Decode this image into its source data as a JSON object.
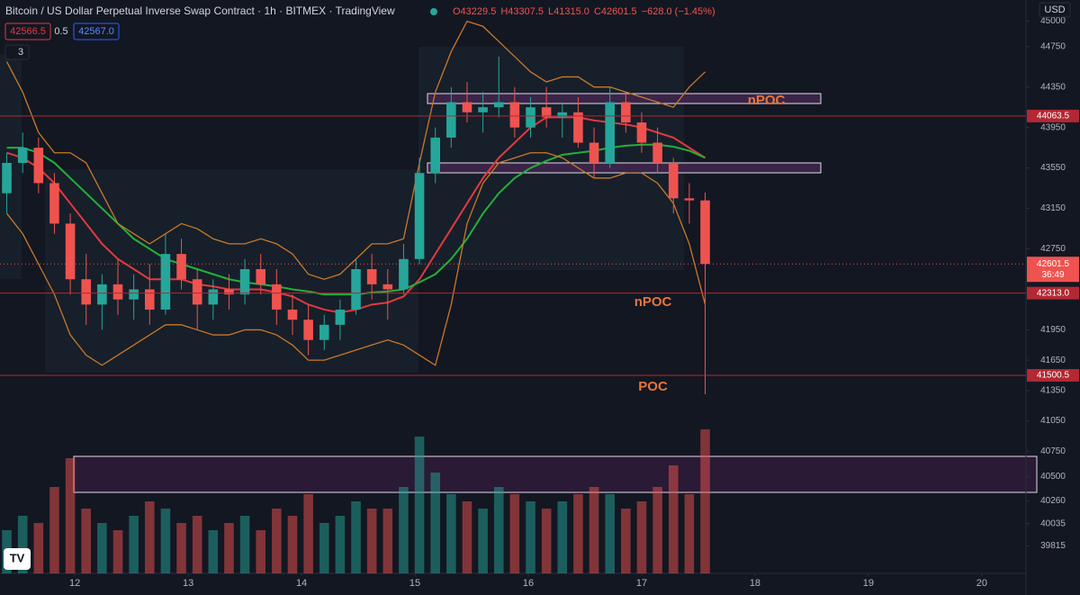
{
  "chart_data": {
    "type": "candlestick",
    "title": "Bitcoin / US Dollar Perpetual Inverse Swap Contract · 1h · BITMEX · TradingView",
    "legend": [
      "O43229.5",
      "H43307.5",
      "L41315.0",
      "C42601.5",
      "−628.0 (−1.45%)"
    ],
    "indicator_values": [
      "42566.5",
      "0.5",
      "42567.0"
    ],
    "collapse_count": "3",
    "currency": "USD",
    "up_color": "#26a69a",
    "down_color": "#ef5350",
    "xlim": [
      11.34,
      20.39
    ],
    "xticks": [
      12,
      13,
      14,
      15,
      16,
      17,
      18,
      19,
      20
    ],
    "ylim": [
      39543,
      45210
    ],
    "yticks": [
      45000,
      44750,
      44350,
      43950,
      43550,
      43150,
      42750,
      41950,
      41650,
      41350,
      41050,
      40750,
      40500,
      40260,
      40035,
      39815
    ],
    "x": [
      11.4,
      11.54,
      11.68,
      11.82,
      11.96,
      12.1,
      12.24,
      12.38,
      12.52,
      12.66,
      12.8,
      12.94,
      13.08,
      13.22,
      13.36,
      13.5,
      13.64,
      13.78,
      13.92,
      14.06,
      14.2,
      14.34,
      14.48,
      14.62,
      14.76,
      14.9,
      15.04,
      15.18,
      15.32,
      15.46,
      15.6,
      15.74,
      15.88,
      16.02,
      16.16,
      16.3,
      16.44,
      16.58,
      16.72,
      16.86,
      17.0,
      17.14,
      17.28,
      17.42,
      17.56
    ],
    "open": [
      43300,
      43600,
      43750,
      43400,
      43000,
      42450,
      42200,
      42400,
      42250,
      42350,
      42150,
      42700,
      42450,
      42200,
      42350,
      42300,
      42550,
      42400,
      42150,
      42050,
      41850,
      42000,
      42150,
      42550,
      42400,
      42350,
      42650,
      43500,
      43850,
      44200,
      44100,
      44150,
      44200,
      43950,
      44150,
      44050,
      44100,
      43800,
      43600,
      44200,
      44000,
      43800,
      43600,
      43250,
      43229.5
    ],
    "high": [
      43700,
      43900,
      43850,
      43500,
      43100,
      42700,
      42500,
      42650,
      42500,
      42600,
      42900,
      42850,
      42550,
      42450,
      42500,
      42650,
      42700,
      42550,
      42300,
      42200,
      42100,
      42250,
      42650,
      42700,
      42550,
      42800,
      43650,
      43950,
      44350,
      44400,
      44300,
      44650,
      44350,
      44250,
      44350,
      44200,
      44250,
      43950,
      44350,
      44300,
      44100,
      43950,
      43650,
      43400,
      43307.5
    ],
    "low": [
      43100,
      43500,
      43300,
      42900,
      42300,
      42000,
      41950,
      42100,
      42050,
      42000,
      42100,
      42350,
      41950,
      42050,
      42150,
      42200,
      42300,
      42000,
      41900,
      41700,
      41750,
      41850,
      42100,
      42250,
      42050,
      42300,
      42600,
      43400,
      43750,
      44000,
      43900,
      44050,
      43850,
      43850,
      43950,
      43850,
      43750,
      43450,
      43550,
      43900,
      43700,
      43500,
      43100,
      43000,
      41315
    ],
    "close": [
      43600,
      43750,
      43400,
      43000,
      42450,
      42200,
      42400,
      42250,
      42350,
      42150,
      42700,
      42450,
      42200,
      42350,
      42300,
      42550,
      42400,
      42150,
      42050,
      41850,
      42000,
      42150,
      42550,
      42400,
      42350,
      42650,
      43500,
      43850,
      44200,
      44100,
      44150,
      44200,
      43950,
      44150,
      44050,
      44100,
      43800,
      43600,
      44200,
      44000,
      43800,
      43600,
      43250,
      43229.5,
      42601.5
    ],
    "volume": [
      30,
      40,
      35,
      60,
      80,
      45,
      35,
      30,
      40,
      50,
      45,
      35,
      40,
      30,
      35,
      40,
      30,
      45,
      40,
      55,
      35,
      40,
      50,
      45,
      45,
      60,
      95,
      70,
      55,
      50,
      45,
      60,
      55,
      50,
      45,
      50,
      55,
      60,
      55,
      45,
      50,
      60,
      75,
      55,
      100
    ],
    "lines": [
      {
        "name": "MA fast",
        "color": "#e03a3e",
        "values": [
          43700,
          43650,
          43550,
          43400,
          43200,
          43000,
          42800,
          42650,
          42550,
          42450,
          42450,
          42450,
          42400,
          42380,
          42350,
          42350,
          42350,
          42320,
          42280,
          42200,
          42150,
          42120,
          42150,
          42200,
          42220,
          42280,
          42450,
          42700,
          42950,
          43200,
          43450,
          43650,
          43800,
          43950,
          44050,
          44050,
          44050,
          44020,
          44000,
          43980,
          43950,
          43900,
          43850,
          43750,
          43650
        ]
      },
      {
        "name": "MA slow",
        "color": "#22b03a",
        "values": [
          43750,
          43750,
          43700,
          43600,
          43450,
          43300,
          43150,
          43000,
          42850,
          42750,
          42650,
          42600,
          42550,
          42500,
          42450,
          42420,
          42400,
          42380,
          42350,
          42330,
          42300,
          42300,
          42300,
          42320,
          42330,
          42350,
          42420,
          42500,
          42650,
          42850,
          43100,
          43300,
          43450,
          43550,
          43620,
          43680,
          43700,
          43720,
          43750,
          43770,
          43780,
          43780,
          43760,
          43720,
          43650
        ]
      },
      {
        "name": "BB upper",
        "color": "#c8792a",
        "values": [
          44600,
          44300,
          43900,
          43700,
          43700,
          43600,
          43300,
          43000,
          42900,
          42800,
          42900,
          43000,
          42950,
          42850,
          42800,
          42800,
          42850,
          42800,
          42700,
          42500,
          42450,
          42500,
          42650,
          42800,
          42800,
          42850,
          43600,
          44300,
          44700,
          45000,
          44950,
          44800,
          44650,
          44500,
          44400,
          44450,
          44450,
          44350,
          44350,
          44300,
          44250,
          44200,
          44150,
          44350,
          44500
        ]
      },
      {
        "name": "BB lower",
        "color": "#c8792a",
        "values": [
          43100,
          42900,
          42600,
          42300,
          41900,
          41700,
          41600,
          41700,
          41800,
          41900,
          42000,
          42000,
          41950,
          41900,
          41900,
          41950,
          41950,
          41900,
          41800,
          41650,
          41650,
          41700,
          41750,
          41800,
          41850,
          41800,
          41700,
          41600,
          42200,
          43000,
          43400,
          43600,
          43650,
          43700,
          43700,
          43650,
          43550,
          43450,
          43450,
          43500,
          43500,
          43400,
          43200,
          42800,
          42200
        ]
      }
    ],
    "levels": [
      {
        "value": 44063.5,
        "label": "44063.5"
      },
      {
        "value": 42313.0,
        "label": "42313.0"
      },
      {
        "value": 41500.5,
        "label": "41500.5"
      }
    ],
    "last_price": {
      "value": 42601.5,
      "label": "42601.5",
      "countdown": "36:49"
    },
    "annotations": [
      {
        "text": "nPOC",
        "x": 18.1,
        "y": 44214
      },
      {
        "text": "nPOC",
        "x": 17.1,
        "y": 42221
      },
      {
        "text": "POC",
        "x": 17.1,
        "y": 41384
      }
    ]
  }
}
